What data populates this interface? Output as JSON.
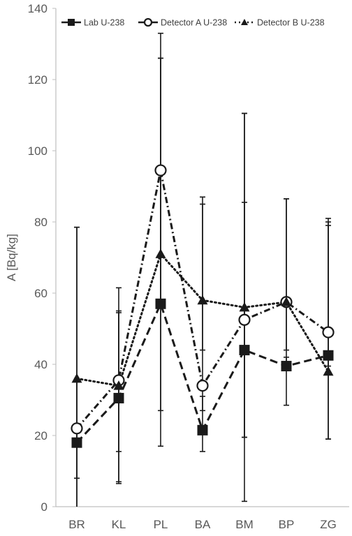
{
  "chart_data": {
    "type": "line",
    "title": "",
    "xlabel": "",
    "ylabel": "A [Bq/kg]",
    "ylim": [
      0,
      140
    ],
    "yticks": [
      0,
      20,
      40,
      60,
      80,
      100,
      120,
      140
    ],
    "grid": false,
    "legend_position": "top",
    "categories": [
      "BR",
      "KL",
      "PL",
      "BA",
      "BM",
      "BP",
      "ZG"
    ],
    "series": [
      {
        "name": "Lab U-238",
        "marker": "square",
        "line_style": "dashed",
        "values": [
          18,
          30.5,
          57,
          21.5,
          44,
          39.5,
          42.5
        ],
        "error_low": [
          0,
          6.5,
          17,
          15.5,
          1.5,
          28.5,
          19
        ],
        "error_high": [
          78.5,
          54.5,
          126,
          31,
          110.5,
          42,
          79
        ]
      },
      {
        "name": "Detector A U-238",
        "marker": "circle-open",
        "line_style": "dash-dot",
        "values": [
          22,
          35.5,
          94.5,
          34,
          52.5,
          57.5,
          49
        ],
        "error_low": [
          8,
          15.5,
          56,
          27,
          19.5,
          40,
          39.5
        ],
        "error_high": [
          36,
          61.5,
          133,
          87,
          85.5,
          86.5,
          81
        ]
      },
      {
        "name": "Detector B U-238",
        "marker": "triangle",
        "line_style": "dotted",
        "values": [
          36,
          34,
          71,
          58,
          56,
          57.5,
          38
        ],
        "error_low": [
          0,
          7,
          27,
          44,
          19.5,
          44,
          19
        ],
        "error_high": [
          78.5,
          55,
          126,
          85,
          110.5,
          86.5,
          80
        ]
      }
    ]
  }
}
